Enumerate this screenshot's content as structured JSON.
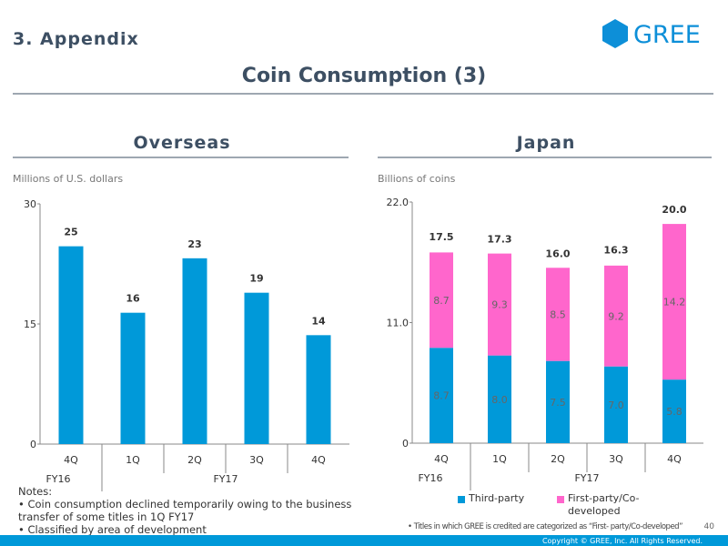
{
  "header": {
    "section": "3. Appendix",
    "logo": "GREE",
    "title": "Coin Consumption (3)"
  },
  "chart_data": [
    {
      "type": "bar",
      "title": "Overseas",
      "ylabel": "Millions of U.S. dollars",
      "categories": [
        "4Q",
        "1Q",
        "2Q",
        "3Q",
        "4Q"
      ],
      "group_labels": [
        "FY16",
        "FY17"
      ],
      "group_sizes": [
        1,
        4
      ],
      "values": [
        24.7,
        16.4,
        23.2,
        18.9,
        13.6
      ],
      "value_labels": [
        "25",
        "16",
        "23",
        "19",
        "14"
      ],
      "color": "#0099d9",
      "ylim": [
        0,
        30
      ],
      "yticks": [
        0,
        15,
        30
      ]
    },
    {
      "type": "stacked_bar",
      "title": "Japan",
      "ylabel": "Billions of coins",
      "categories": [
        "4Q",
        "1Q",
        "2Q",
        "3Q",
        "4Q"
      ],
      "group_labels": [
        "FY16",
        "FY17"
      ],
      "group_sizes": [
        1,
        4
      ],
      "series": [
        {
          "name": "Third-party",
          "color": "#0099d9",
          "values": [
            8.7,
            8.0,
            7.5,
            7.0,
            5.8
          ],
          "value_labels": [
            "8.7",
            "8.0",
            "7.5",
            "7.0",
            "5.8"
          ]
        },
        {
          "name": "First-party/Co-developed",
          "color": "#ff66cc",
          "values": [
            8.7,
            9.3,
            8.5,
            9.2,
            14.2
          ],
          "value_labels": [
            "8.7",
            "9.3",
            "8.5",
            "9.2",
            "14.2"
          ]
        }
      ],
      "totals": [
        17.5,
        17.3,
        16.0,
        16.3,
        20.0
      ],
      "total_labels": [
        "17.5",
        "17.3",
        "16.0",
        "16.3",
        "20.0"
      ],
      "ylim": [
        0,
        22
      ],
      "yticks": [
        0,
        {
          "value": 11,
          "label": "11.0"
        },
        {
          "value": 22,
          "label": "22.0"
        }
      ],
      "legend": "bottom",
      "footnote": "• Titles in which GREE is credited are categorized as “First- party/Co-developed”"
    }
  ],
  "notes": [
    "Notes:",
    "• Coin consumption declined temporarily owing to the business transfer of some titles in 1Q FY17",
    "• Classified by area of development"
  ],
  "footer": {
    "page": "40",
    "copyright": "Copyright © GREE, Inc. All Rights Reserved."
  }
}
